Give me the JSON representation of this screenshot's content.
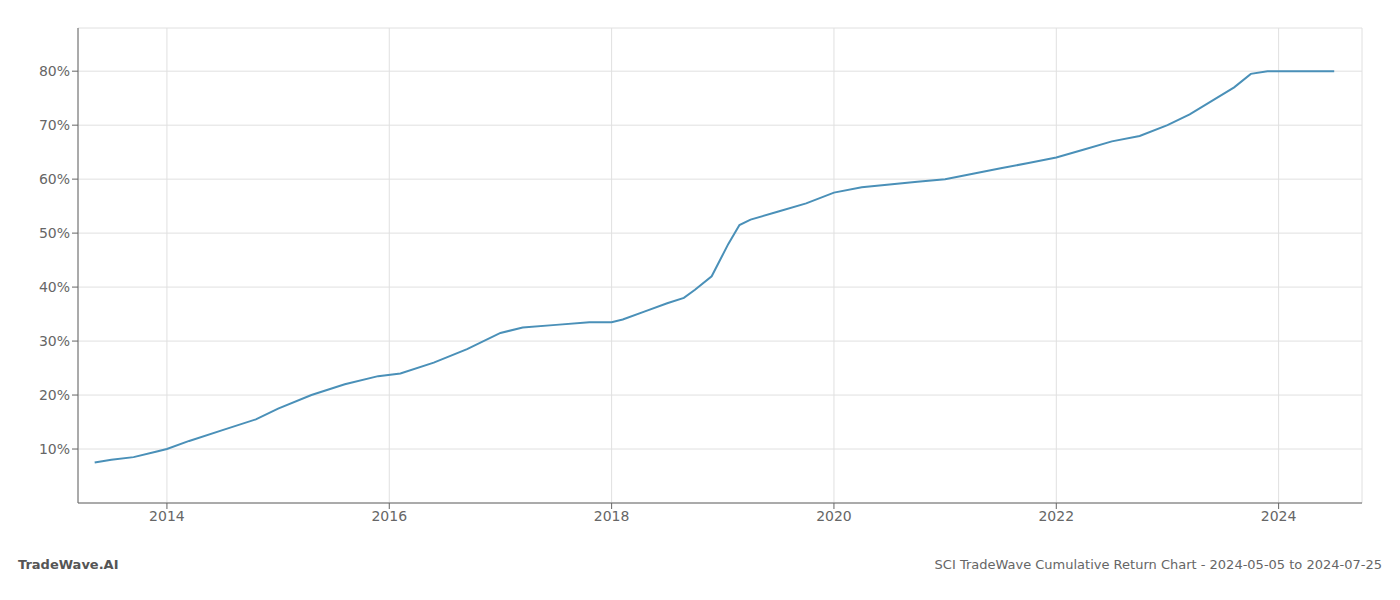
{
  "chart_data": {
    "type": "line",
    "title": "SCI TradeWave Cumulative Return Chart - 2024-05-05 to 2024-07-25",
    "annotations": [
      "TradeWave.AI"
    ],
    "x": [
      2013.35,
      2013.5,
      2013.7,
      2013.9,
      2014.0,
      2014.2,
      2014.5,
      2014.8,
      2015.0,
      2015.3,
      2015.6,
      2015.9,
      2016.1,
      2016.4,
      2016.7,
      2017.0,
      2017.2,
      2017.5,
      2017.8,
      2018.0,
      2018.1,
      2018.3,
      2018.5,
      2018.65,
      2018.75,
      2018.9,
      2019.05,
      2019.15,
      2019.25,
      2019.5,
      2019.75,
      2020.0,
      2020.25,
      2020.5,
      2020.75,
      2021.0,
      2021.25,
      2021.5,
      2021.75,
      2022.0,
      2022.25,
      2022.5,
      2022.75,
      2023.0,
      2023.2,
      2023.4,
      2023.6,
      2023.75,
      2023.9,
      2024.0,
      2024.2,
      2024.5
    ],
    "values": [
      7.5,
      8.0,
      8.5,
      9.5,
      10.0,
      11.5,
      13.5,
      15.5,
      17.5,
      20.0,
      22.0,
      23.5,
      24.0,
      26.0,
      28.5,
      31.5,
      32.5,
      33.0,
      33.5,
      33.5,
      34.0,
      35.5,
      37.0,
      38.0,
      39.5,
      42.0,
      48.0,
      51.5,
      52.5,
      54.0,
      55.5,
      57.5,
      58.5,
      59.0,
      59.5,
      60.0,
      61.0,
      62.0,
      63.0,
      64.0,
      65.5,
      67.0,
      68.0,
      70.0,
      72.0,
      74.5,
      77.0,
      79.5,
      80.0,
      80.0,
      80.0,
      80.0
    ],
    "color": "#4a90b8",
    "xlim": [
      2013.2,
      2024.75
    ],
    "ylim": [
      0,
      88
    ],
    "xticks": [
      2014,
      2016,
      2018,
      2020,
      2022,
      2024
    ],
    "yticks": [
      {
        "value": 10,
        "label": "10%"
      },
      {
        "value": 20,
        "label": "20%"
      },
      {
        "value": 30,
        "label": "30%"
      },
      {
        "value": 40,
        "label": "40%"
      },
      {
        "value": 50,
        "label": "50%"
      },
      {
        "value": 60,
        "label": "60%"
      },
      {
        "value": 70,
        "label": "70%"
      },
      {
        "value": 80,
        "label": "80%"
      }
    ],
    "grid": true
  }
}
